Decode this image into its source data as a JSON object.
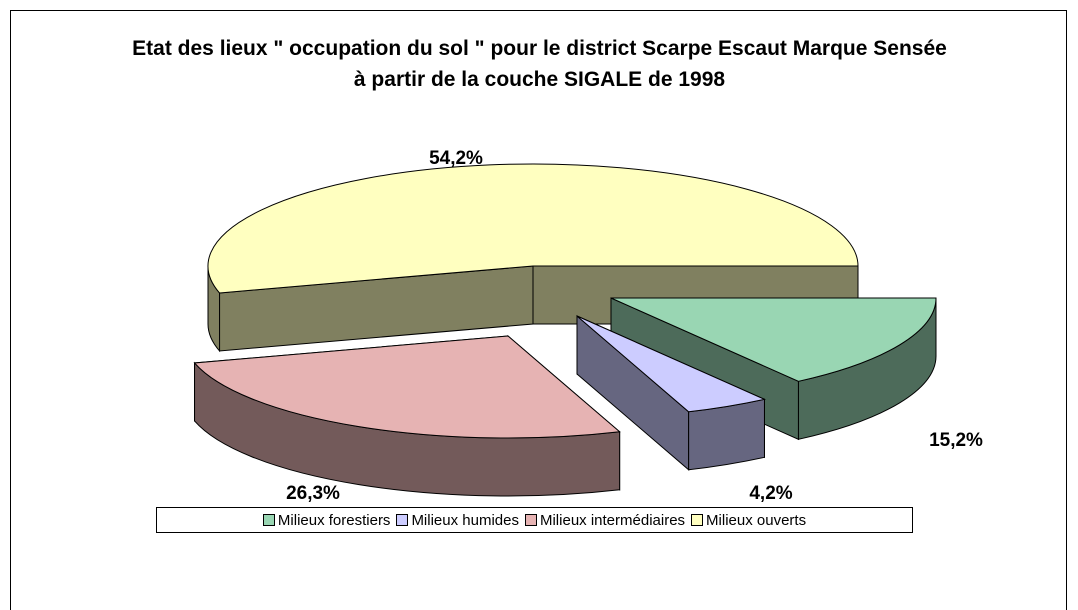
{
  "chart_data": {
    "type": "pie3d",
    "title": "Etat des lieux \" occupation du sol \" pour le district Scarpe Escaut Marque Sensée à partir de la couche SIGALE de 1998",
    "categories": [
      "Milieux forestiers",
      "Milieux humides",
      "Milieux intermédiaires",
      "Milieux ouverts"
    ],
    "values": [
      15.2,
      4.2,
      26.3,
      54.2
    ],
    "value_labels": [
      "15,2%",
      "4,2%",
      "26,3%",
      "54,2%"
    ],
    "colors": [
      "#99d6b3",
      "#ccccff",
      "#e6b3b3",
      "#ffffc0"
    ],
    "legend": "bottom"
  }
}
